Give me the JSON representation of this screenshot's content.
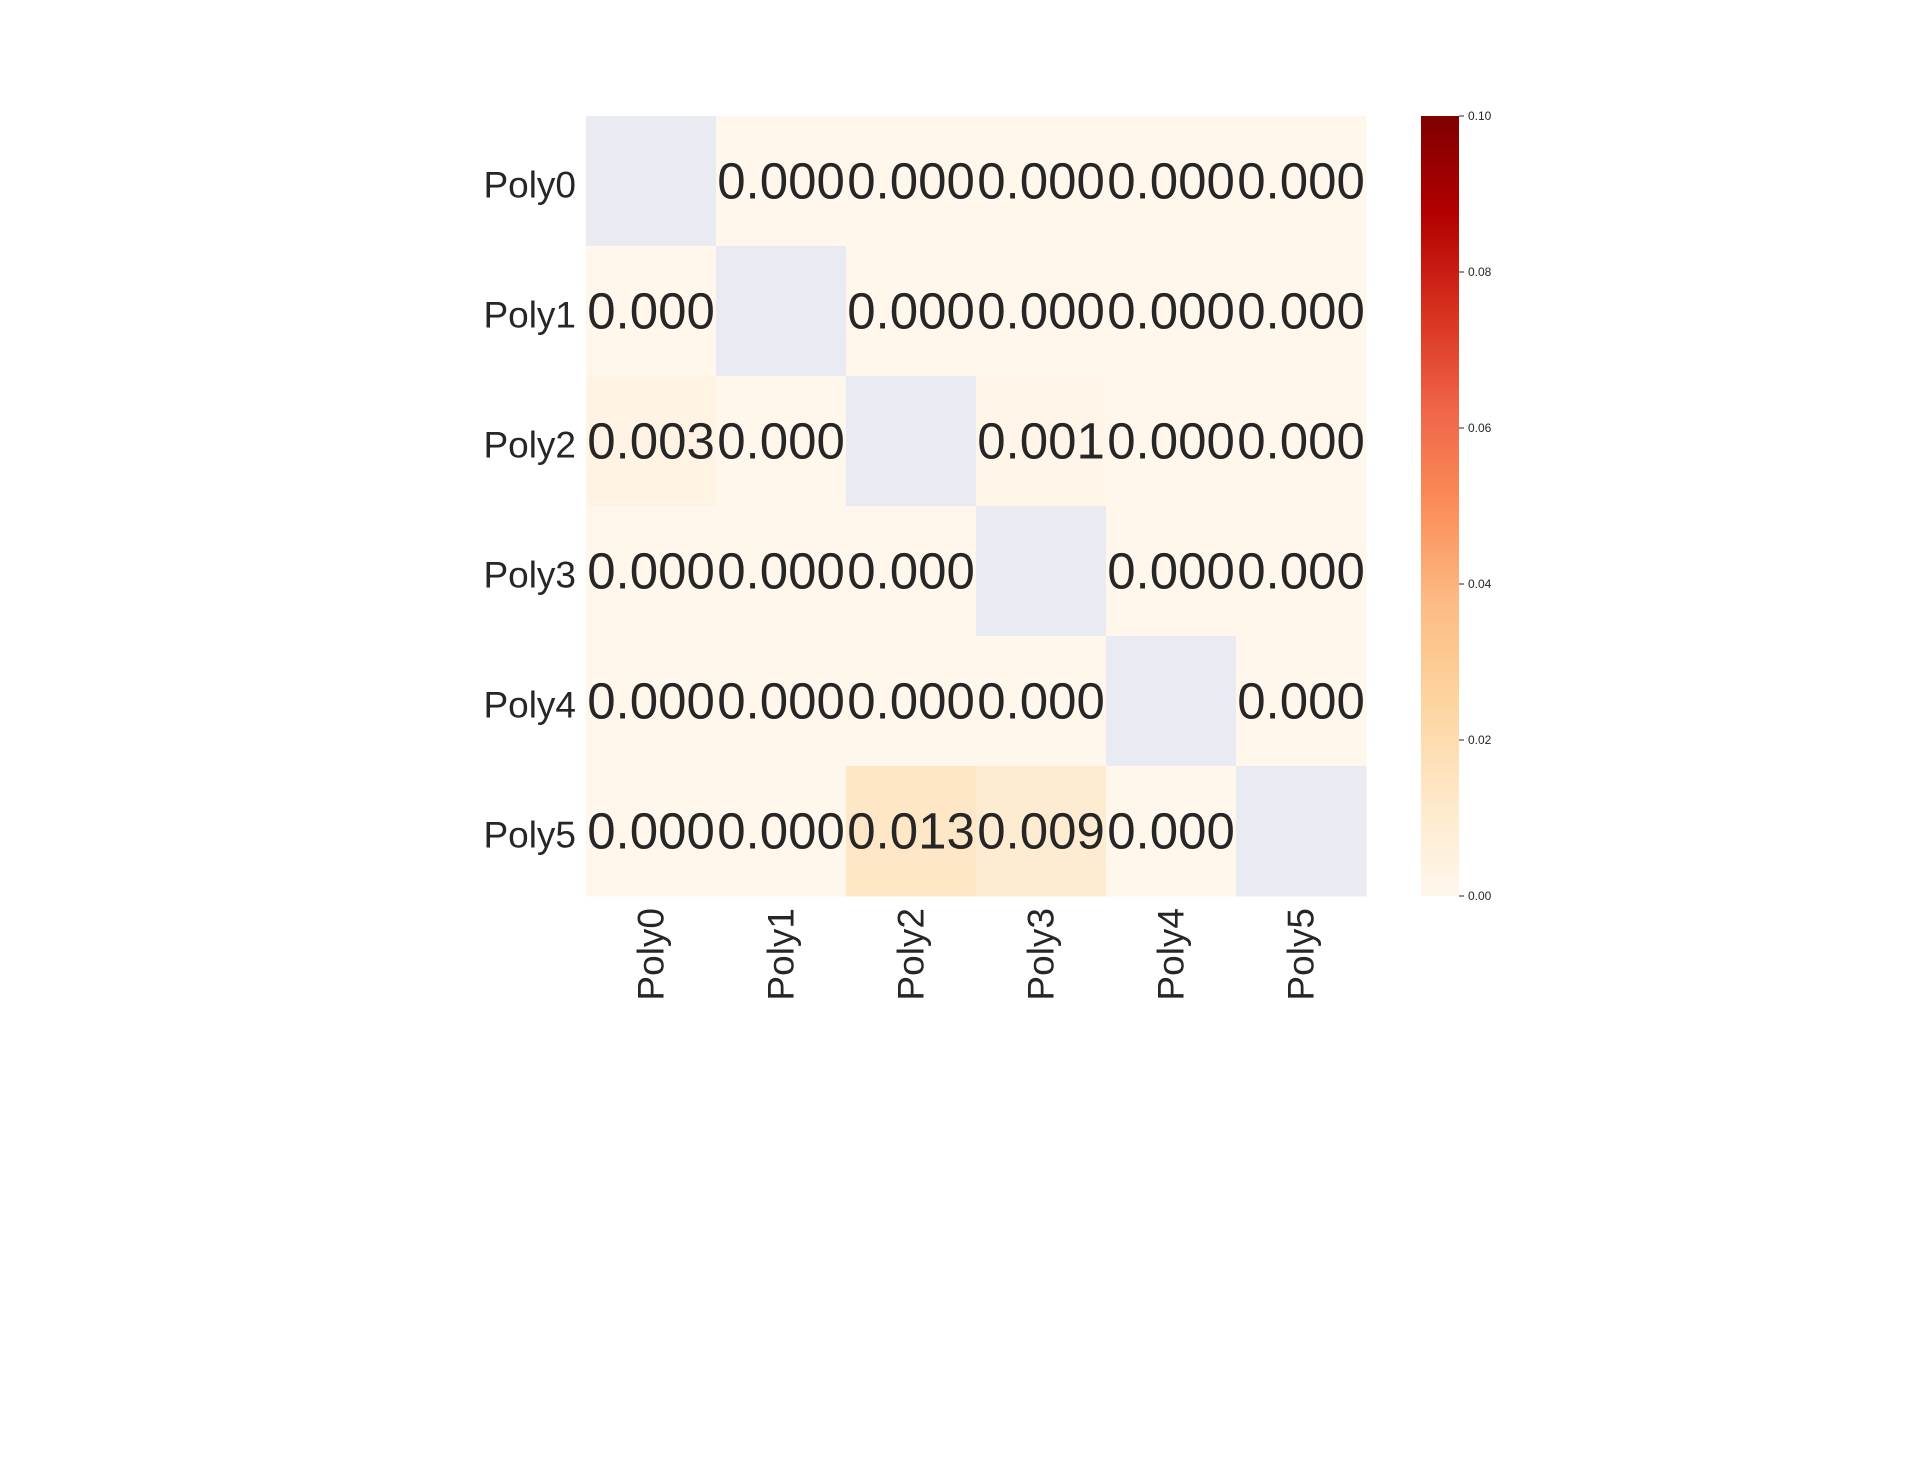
{
  "chart_data": {
    "type": "heatmap",
    "title": "",
    "xlabel": "",
    "ylabel": "",
    "x_categories": [
      "Poly0",
      "Poly1",
      "Poly2",
      "Poly3",
      "Poly4",
      "Poly5"
    ],
    "y_categories": [
      "Poly0",
      "Poly1",
      "Poly2",
      "Poly3",
      "Poly4",
      "Poly5"
    ],
    "values": [
      [
        null,
        0.0,
        0.0,
        0.0,
        0.0,
        0.0
      ],
      [
        0.0,
        null,
        0.0,
        0.0,
        0.0,
        0.0
      ],
      [
        0.003,
        0.0,
        null,
        0.001,
        0.0,
        0.0
      ],
      [
        0.0,
        0.0,
        0.0,
        null,
        0.0,
        0.0
      ],
      [
        0.0,
        0.0,
        0.0,
        0.0,
        null,
        0.0
      ],
      [
        0.0,
        0.0,
        0.013,
        0.009,
        0.0,
        null
      ]
    ],
    "annotation_format": "0.000",
    "diagonal_masked": true,
    "colormap": "OrRd",
    "colorbar": {
      "min": 0.0,
      "max": 0.1,
      "ticks": [
        "0.00",
        "0.02",
        "0.04",
        "0.06",
        "0.08",
        "0.10"
      ],
      "placement": "right"
    },
    "mask_color": "#eaeaf2",
    "colors": {
      "text": "#262626",
      "background": "#ffffff"
    },
    "grid": false
  }
}
